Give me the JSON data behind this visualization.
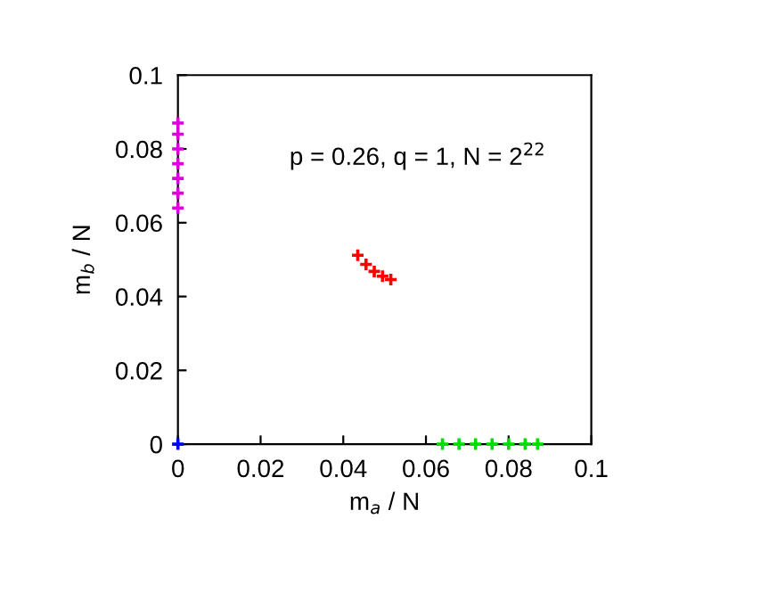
{
  "chart_data": {
    "type": "scatter",
    "xlabel": "m$_{a}$ / N",
    "ylabel": "m$_{b}$ / N",
    "annotations": [
      "p = 0.26, q = 1, N = 2$^{22}$"
    ],
    "xlim": [
      0,
      0.1
    ],
    "ylim": [
      0,
      0.1
    ],
    "xticks": [
      0,
      0.02,
      0.04,
      0.06,
      0.08,
      0.1
    ],
    "yticks": [
      0,
      0.02,
      0.04,
      0.06,
      0.08,
      0.1
    ],
    "grid": false,
    "legend": false,
    "marker": "cross",
    "series": [
      {
        "color": "#ff0000",
        "x": [
          0.0435,
          0.0455,
          0.0475,
          0.0495,
          0.0515
        ],
        "values": [
          0.0512,
          0.0487,
          0.0468,
          0.0455,
          0.0446
        ]
      },
      {
        "color": "#00dd00",
        "x": [
          0.064,
          0.068,
          0.072,
          0.076,
          0.08,
          0.084,
          0.087
        ],
        "values": [
          0,
          0,
          0,
          0,
          0,
          0,
          0
        ]
      },
      {
        "color": "#dd00dd",
        "x": [
          0,
          0,
          0,
          0,
          0,
          0,
          0
        ],
        "values": [
          0.064,
          0.068,
          0.072,
          0.076,
          0.08,
          0.084,
          0.087
        ]
      },
      {
        "color": "#0000ff",
        "x": [
          0
        ],
        "values": [
          0
        ]
      }
    ]
  }
}
